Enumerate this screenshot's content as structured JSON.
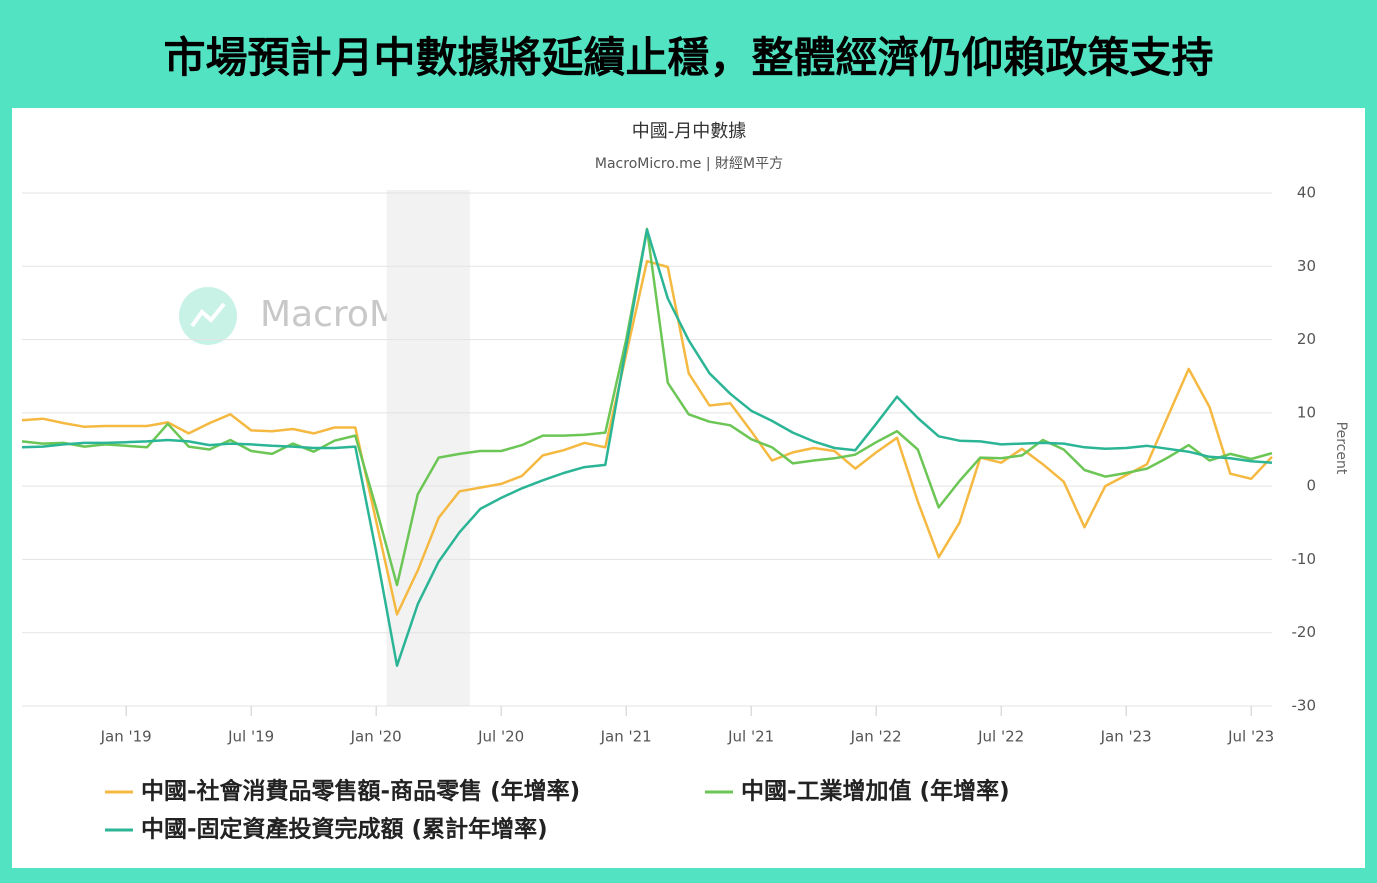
{
  "header": {
    "title": "市場預計月中數據將延續止穩，整體經濟仍仰賴政策支持"
  },
  "chart_data": {
    "type": "line",
    "title": "中國-月中數據",
    "subtitle": "MacroMicro.me | 財經M平方",
    "watermark": "MacroMicro",
    "y_label": "Percent",
    "x": [
      "2018-08",
      "2018-09",
      "2018-10",
      "2018-11",
      "2018-12",
      "2019-01",
      "2019-02",
      "2019-03",
      "2019-04",
      "2019-05",
      "2019-06",
      "2019-07",
      "2019-08",
      "2019-09",
      "2019-10",
      "2019-11",
      "2019-12",
      "2020-01",
      "2020-02",
      "2020-03",
      "2020-04",
      "2020-05",
      "2020-06",
      "2020-07",
      "2020-08",
      "2020-09",
      "2020-10",
      "2020-11",
      "2020-12",
      "2021-01",
      "2021-02",
      "2021-03",
      "2021-04",
      "2021-05",
      "2021-06",
      "2021-07",
      "2021-08",
      "2021-09",
      "2021-10",
      "2021-11",
      "2021-12",
      "2022-01",
      "2022-02",
      "2022-03",
      "2022-04",
      "2022-05",
      "2022-06",
      "2022-07",
      "2022-08",
      "2022-09",
      "2022-10",
      "2022-11",
      "2022-12",
      "2023-01",
      "2023-02",
      "2023-03",
      "2023-04",
      "2023-05",
      "2023-06",
      "2023-07",
      "2023-08"
    ],
    "xlim": [
      "2018-08",
      "2023-08"
    ],
    "xticks": [
      {
        "value": "2019-01",
        "label": "Jan '19"
      },
      {
        "value": "2019-07",
        "label": "Jul '19"
      },
      {
        "value": "2020-01",
        "label": "Jan '20"
      },
      {
        "value": "2020-07",
        "label": "Jul '20"
      },
      {
        "value": "2021-01",
        "label": "Jan '21"
      },
      {
        "value": "2021-07",
        "label": "Jul '21"
      },
      {
        "value": "2022-01",
        "label": "Jan '22"
      },
      {
        "value": "2022-07",
        "label": "Jul '22"
      },
      {
        "value": "2023-01",
        "label": "Jan '23"
      },
      {
        "value": "2023-07",
        "label": "Jul '23"
      }
    ],
    "shaded_range": [
      "2020-02",
      "2020-05"
    ],
    "ylim": [
      -30,
      40
    ],
    "yticks": [
      -30,
      -20,
      -10,
      0,
      10,
      20,
      30,
      40
    ],
    "grid": true,
    "legend": "bottom",
    "series": [
      {
        "name": "中國-社會消費品零售額-商品零售 (年增率)",
        "color": "#f5b942",
        "values": [
          9.0,
          9.2,
          8.6,
          8.1,
          8.2,
          8.2,
          8.2,
          8.7,
          7.2,
          8.6,
          9.8,
          7.6,
          7.5,
          7.8,
          7.2,
          8.0,
          8.0,
          -4.8,
          -17.5,
          -11.5,
          -4.3,
          -0.7,
          -0.2,
          0.3,
          1.4,
          4.2,
          4.9,
          5.9,
          5.3,
          18,
          30.7,
          29.9,
          15.4,
          11.0,
          11.3,
          7.5,
          3.5,
          4.6,
          5.2,
          4.8,
          2.4,
          4.6,
          6.6,
          -2.1,
          -9.7,
          -5.0,
          3.9,
          3.2,
          5.1,
          3.0,
          0.6,
          -5.6,
          0.0,
          1.5,
          3.0,
          9.5,
          16.0,
          10.8,
          1.7,
          1.0,
          4.0
        ]
      },
      {
        "name": "中國-工業增加值 (年增率)",
        "color": "#6cc655",
        "values": [
          6.1,
          5.8,
          5.9,
          5.4,
          5.7,
          5.5,
          5.3,
          8.5,
          5.4,
          5.0,
          6.3,
          4.8,
          4.4,
          5.8,
          4.7,
          6.2,
          6.9,
          -3,
          -13.5,
          -1.1,
          3.9,
          4.4,
          4.8,
          4.8,
          5.6,
          6.9,
          6.9,
          7.0,
          7.3,
          20,
          35.1,
          14.1,
          9.8,
          8.8,
          8.3,
          6.4,
          5.3,
          3.1,
          3.5,
          3.8,
          4.3,
          6,
          7.5,
          5.0,
          -2.9,
          0.7,
          3.9,
          3.8,
          4.2,
          6.3,
          5.0,
          2.2,
          1.3,
          1.8,
          2.4,
          3.9,
          5.6,
          3.5,
          4.4,
          3.7,
          4.5
        ]
      },
      {
        "name": "中國-固定資產投資完成額 (累計年增率)",
        "color": "#2bb596",
        "values": [
          5.3,
          5.4,
          5.7,
          5.9,
          5.9,
          6.0,
          6.1,
          6.3,
          6.1,
          5.6,
          5.8,
          5.7,
          5.5,
          5.4,
          5.2,
          5.2,
          5.4,
          -9,
          -24.5,
          -16.1,
          -10.3,
          -6.3,
          -3.1,
          -1.6,
          -0.3,
          0.8,
          1.8,
          2.6,
          2.9,
          19,
          35.0,
          25.6,
          19.9,
          15.4,
          12.6,
          10.3,
          8.9,
          7.3,
          6.1,
          5.2,
          4.9,
          8.5,
          12.2,
          9.3,
          6.8,
          6.2,
          6.1,
          5.7,
          5.8,
          5.9,
          5.8,
          5.3,
          5.1,
          5.2,
          5.5,
          5.1,
          4.7,
          4.0,
          3.8,
          3.4,
          3.2
        ]
      }
    ]
  }
}
